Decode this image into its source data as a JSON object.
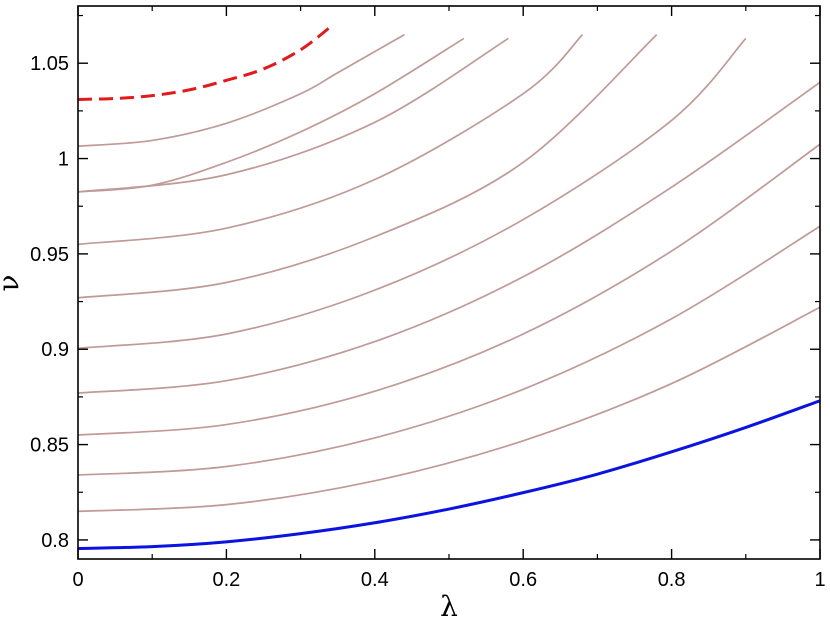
{
  "chart_data": {
    "type": "line",
    "title": "",
    "xlabel": "λ",
    "ylabel": "ν",
    "xlim": [
      0,
      1
    ],
    "ylim": [
      0.79,
      1.08
    ],
    "grid": false,
    "legend": "none",
    "x_ticks": [
      "0",
      "0.2",
      "0.4",
      "0.6",
      "0.8",
      "1"
    ],
    "y_ticks": [
      "0.8",
      "0.85",
      "0.9",
      "0.95",
      "1",
      "1.05"
    ],
    "colors": {
      "blue": "#0b13e0",
      "brown": "#c09a96",
      "red": "#e01b1b"
    },
    "series": [
      {
        "style": "solid",
        "color": "blue",
        "x": [
          0,
          0.1,
          0.2,
          0.3,
          0.4,
          0.5,
          0.6,
          0.7,
          0.8,
          0.9,
          1.0
        ],
        "y": [
          0.7955,
          0.7965,
          0.799,
          0.8033,
          0.809,
          0.8162,
          0.8248,
          0.8345,
          0.8462,
          0.859,
          0.873
        ]
      },
      {
        "style": "solid",
        "color": "brown",
        "x": [
          0,
          0.2,
          0.4,
          0.6,
          0.8,
          1.0
        ],
        "y": [
          0.815,
          0.8185,
          0.831,
          0.852,
          0.882,
          0.922
        ]
      },
      {
        "style": "solid",
        "color": "brown",
        "x": [
          0,
          0.2,
          0.4,
          0.6,
          0.8,
          1.0
        ],
        "y": [
          0.834,
          0.8385,
          0.8535,
          0.879,
          0.916,
          0.9645
        ]
      },
      {
        "style": "solid",
        "color": "brown",
        "x": [
          0,
          0.2,
          0.4,
          0.6,
          0.8,
          1.0
        ],
        "y": [
          0.855,
          0.8605,
          0.878,
          0.908,
          0.9515,
          1.0075
        ]
      },
      {
        "style": "solid",
        "color": "brown",
        "x": [
          0,
          0.2,
          0.4,
          0.6,
          0.8,
          1.0
        ],
        "y": [
          0.877,
          0.8835,
          0.904,
          0.938,
          0.985,
          1.04
        ]
      },
      {
        "style": "solid",
        "color": "brown",
        "x": [
          0,
          0.2,
          0.4,
          0.6,
          0.8,
          0.9
        ],
        "y": [
          0.9005,
          0.908,
          0.931,
          0.968,
          1.02,
          1.063
        ]
      },
      {
        "style": "solid",
        "color": "brown",
        "x": [
          0,
          0.2,
          0.4,
          0.6,
          0.78
        ],
        "y": [
          0.927,
          0.935,
          0.959,
          0.998,
          1.065
        ]
      },
      {
        "style": "solid",
        "color": "brown",
        "x": [
          0,
          0.2,
          0.4,
          0.6,
          0.68
        ],
        "y": [
          0.955,
          0.9635,
          0.989,
          1.034,
          1.065
        ]
      },
      {
        "style": "solid",
        "color": "brown",
        "x": [
          0,
          0.2,
          0.4,
          0.58
        ],
        "y": [
          0.9825,
          0.9915,
          1.019,
          1.063
        ]
      },
      {
        "style": "solid",
        "color": "brown",
        "x": [
          0,
          0.1,
          0.2,
          0.3,
          0.4,
          0.52
        ],
        "y": [
          0.9825,
          0.986,
          0.998,
          1.014,
          1.034,
          1.063
        ]
      },
      {
        "style": "solid",
        "color": "brown",
        "x": [
          0,
          0.1,
          0.2,
          0.3,
          0.35,
          0.44
        ],
        "y": [
          1.0065,
          1.0095,
          1.0185,
          1.034,
          1.045,
          1.065
        ]
      },
      {
        "style": "dashed",
        "color": "red",
        "x": [
          0,
          0.05,
          0.1,
          0.15,
          0.2,
          0.25,
          0.3,
          0.34
        ],
        "y": [
          1.031,
          1.0315,
          1.033,
          1.036,
          1.041,
          1.047,
          1.057,
          1.069
        ]
      }
    ]
  }
}
